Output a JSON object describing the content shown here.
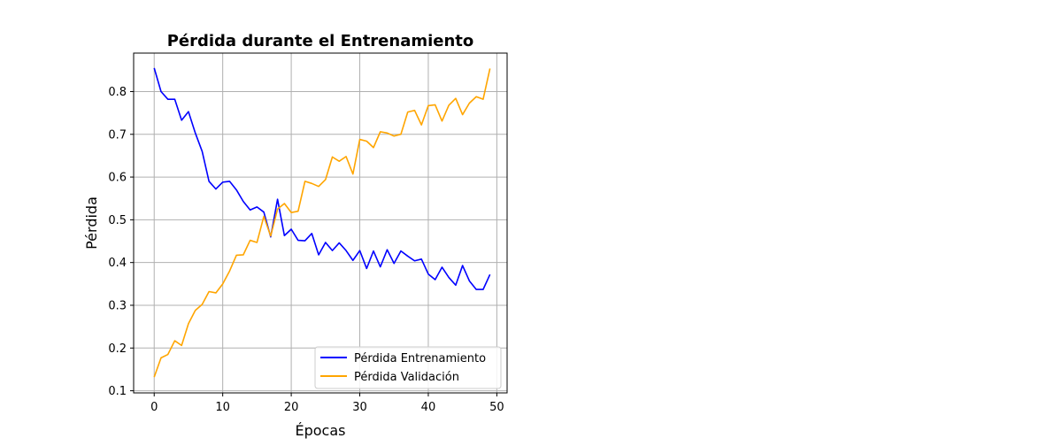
{
  "chart_data": {
    "type": "line",
    "title": "Pérdida durante el Entrenamiento",
    "xlabel": "Épocas",
    "ylabel": "Pérdida",
    "xlim": [
      -3,
      51.5
    ],
    "ylim": [
      0.095,
      0.89
    ],
    "xticks": [
      "0",
      "10",
      "20",
      "30",
      "40",
      "50"
    ],
    "xtick_values": [
      0,
      10,
      20,
      30,
      40,
      50
    ],
    "yticks": [
      "0.1",
      "0.2",
      "0.3",
      "0.4",
      "0.5",
      "0.6",
      "0.7",
      "0.8"
    ],
    "ytick_values": [
      0.1,
      0.2,
      0.3,
      0.4,
      0.5,
      0.6,
      0.7,
      0.8
    ],
    "grid": true,
    "legend_position": "lower-right",
    "x": [
      0,
      1,
      2,
      3,
      4,
      5,
      6,
      7,
      8,
      9,
      10,
      11,
      12,
      13,
      14,
      15,
      16,
      17,
      18,
      19,
      20,
      21,
      22,
      23,
      24,
      25,
      26,
      27,
      28,
      29,
      30,
      31,
      32,
      33,
      34,
      35,
      36,
      37,
      38,
      39,
      40,
      41,
      42,
      43,
      44,
      45,
      46,
      47,
      48,
      49
    ],
    "series": [
      {
        "name": "Pérdida Entrenamiento",
        "color": "#0000ff",
        "values": [
          0.855,
          0.8,
          0.782,
          0.782,
          0.733,
          0.753,
          0.703,
          0.66,
          0.59,
          0.572,
          0.588,
          0.59,
          0.57,
          0.543,
          0.523,
          0.53,
          0.518,
          0.46,
          0.548,
          0.463,
          0.478,
          0.452,
          0.451,
          0.468,
          0.418,
          0.447,
          0.428,
          0.446,
          0.428,
          0.405,
          0.428,
          0.386,
          0.427,
          0.39,
          0.43,
          0.398,
          0.427,
          0.415,
          0.404,
          0.408,
          0.373,
          0.36,
          0.389,
          0.365,
          0.347,
          0.393,
          0.357,
          0.337,
          0.337,
          0.372
        ]
      },
      {
        "name": "Pérdida Validación",
        "color": "#ffa500",
        "values": [
          0.132,
          0.177,
          0.185,
          0.217,
          0.206,
          0.257,
          0.288,
          0.302,
          0.332,
          0.329,
          0.35,
          0.38,
          0.417,
          0.418,
          0.452,
          0.447,
          0.508,
          0.462,
          0.525,
          0.538,
          0.517,
          0.52,
          0.59,
          0.585,
          0.578,
          0.594,
          0.647,
          0.637,
          0.648,
          0.607,
          0.688,
          0.684,
          0.669,
          0.706,
          0.703,
          0.696,
          0.7,
          0.752,
          0.756,
          0.722,
          0.767,
          0.769,
          0.731,
          0.768,
          0.784,
          0.746,
          0.773,
          0.788,
          0.782,
          0.854
        ]
      }
    ]
  }
}
